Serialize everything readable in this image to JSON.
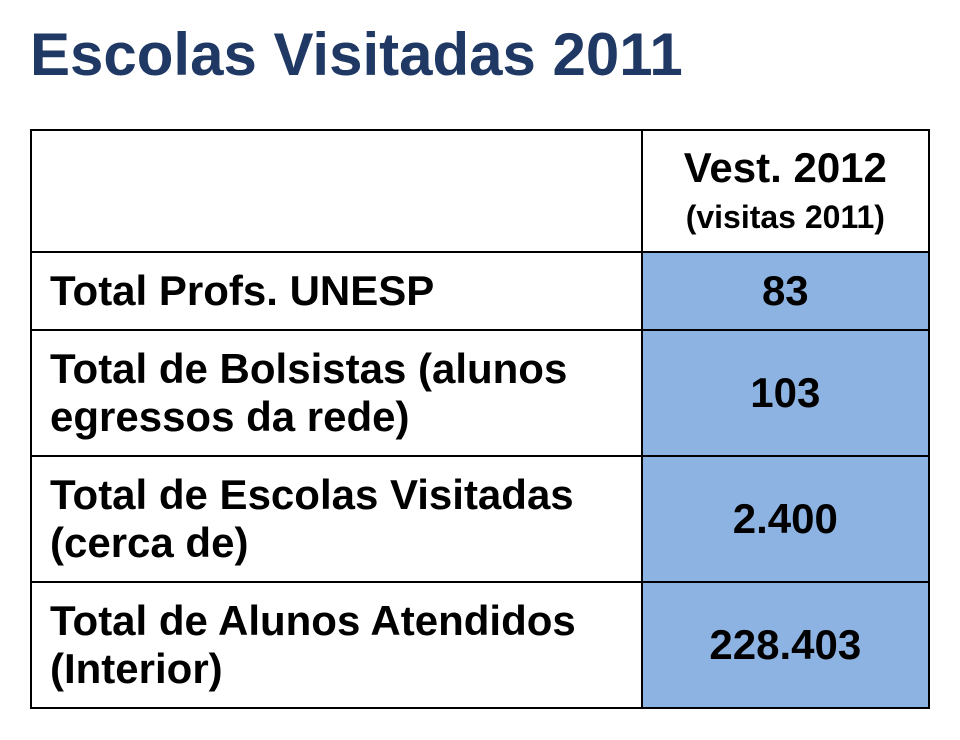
{
  "title": "Escolas Visitadas 2011",
  "colors": {
    "title_color": "#1f3864",
    "border_color": "#000000",
    "label_bg": "#ffffff",
    "value_bg": "#8db3e2",
    "text_color": "#000000"
  },
  "table": {
    "header": {
      "label": "",
      "value_line1": "Vest. 2012",
      "value_line2": "(visitas 2011)"
    },
    "rows": [
      {
        "label": "Total Profs. UNESP",
        "value": "83"
      },
      {
        "label": "Total de Bolsistas (alunos egressos da rede)",
        "value": "103"
      },
      {
        "label": "Total de Escolas Visitadas (cerca de)",
        "value": "2.400"
      },
      {
        "label": "Total de Alunos Atendidos (Interior)",
        "value": "228.403"
      }
    ]
  },
  "layout": {
    "label_col_width_pct": 68,
    "value_col_width_pct": 32,
    "title_fontsize": 60,
    "cell_fontsize": 42,
    "sub_fontsize": 32
  }
}
